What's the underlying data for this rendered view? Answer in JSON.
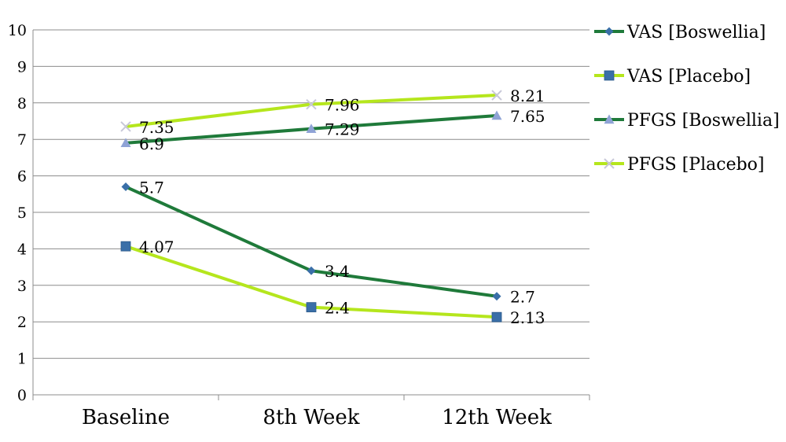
{
  "chart_data": {
    "type": "line",
    "categories": [
      "Baseline",
      "8th Week",
      "12th Week"
    ],
    "ylim": [
      0,
      10
    ],
    "y_ticks": [
      "0",
      "1",
      "2",
      "3",
      "4",
      "5",
      "6",
      "7",
      "8",
      "9",
      "10"
    ],
    "grid": "horizontal",
    "legend_placement": "right",
    "series": [
      {
        "name": "VAS [Boswellia]",
        "values": [
          5.7,
          3.4,
          2.7
        ],
        "labels": [
          "5.7",
          "3.4",
          "2.7"
        ],
        "color": "#1f7a3a",
        "marker": "diamond",
        "marker_color": "#3a6fa8"
      },
      {
        "name": "VAS [Placebo]",
        "values": [
          4.07,
          2.4,
          2.13
        ],
        "labels": [
          "4.07",
          "2.4",
          "2.13"
        ],
        "color": "#b5e61d",
        "marker": "square",
        "marker_color": "#3a6fa8"
      },
      {
        "name": "PFGS [Boswellia]",
        "values": [
          6.9,
          7.29,
          7.65
        ],
        "labels": [
          "6.9",
          "7.29",
          "7.65"
        ],
        "color": "#1f7a3a",
        "marker": "triangle",
        "marker_color": "#8fa3d6"
      },
      {
        "name": "PFGS [Placebo]",
        "values": [
          7.35,
          7.96,
          8.21
        ],
        "labels": [
          "7.35",
          "7.96",
          "8.21"
        ],
        "color": "#b5e61d",
        "marker": "x",
        "marker_color": "#c8c8d8"
      }
    ]
  }
}
